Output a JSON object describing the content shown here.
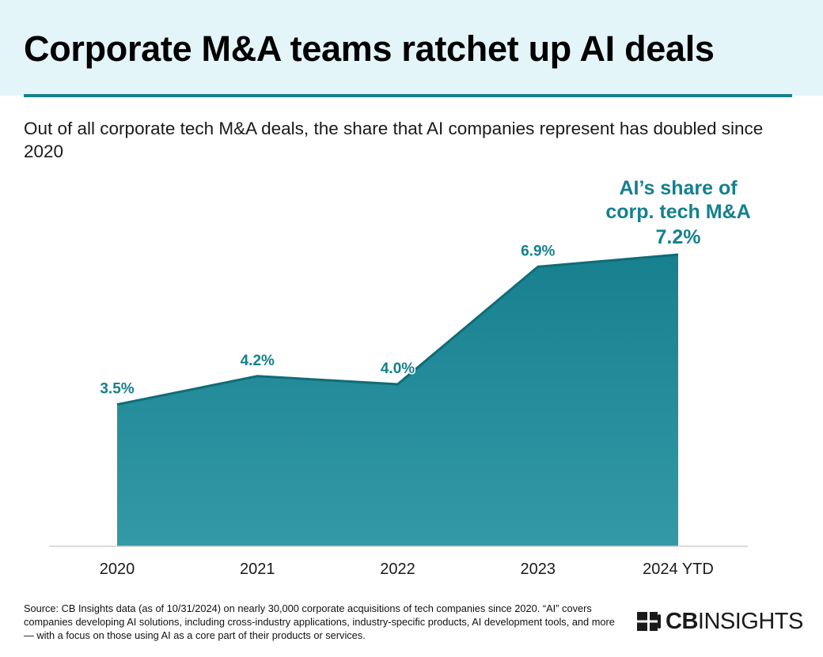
{
  "header": {
    "title": "Corporate M&A teams ratchet up AI deals",
    "subtitle": "Out of all corporate tech M&A deals, the share that AI companies represent has doubled since 2020"
  },
  "chart_data": {
    "type": "area",
    "categories": [
      "2020",
      "2021",
      "2022",
      "2023",
      "2024 YTD"
    ],
    "values": [
      3.5,
      4.2,
      4.0,
      6.9,
      7.2
    ],
    "value_labels": [
      "3.5%",
      "4.2%",
      "4.0%",
      "6.9%",
      "7.2%"
    ],
    "ylim": [
      0,
      7.4
    ],
    "annotation": {
      "line1": "AI’s share of",
      "line2": "corp. tech M&A"
    },
    "xlabel": "",
    "ylabel": ""
  },
  "footer": {
    "source": "Source: CB Insights data (as of 10/31/2024) on nearly 30,000 corporate acquisitions of tech companies since 2020. “AI” covers companies developing AI solutions, including cross-industry applications, industry-specific products, AI development tools, and more — with a focus on those using AI as a core part of their products or services.",
    "brand_bold": "CB",
    "brand_rest": "INSIGHTS"
  },
  "colors": {
    "accent": "#15808d",
    "area_top": "#17808f",
    "area_bottom": "#3399a6",
    "label": "#15808d",
    "header_bg": "#e4f5fa"
  }
}
